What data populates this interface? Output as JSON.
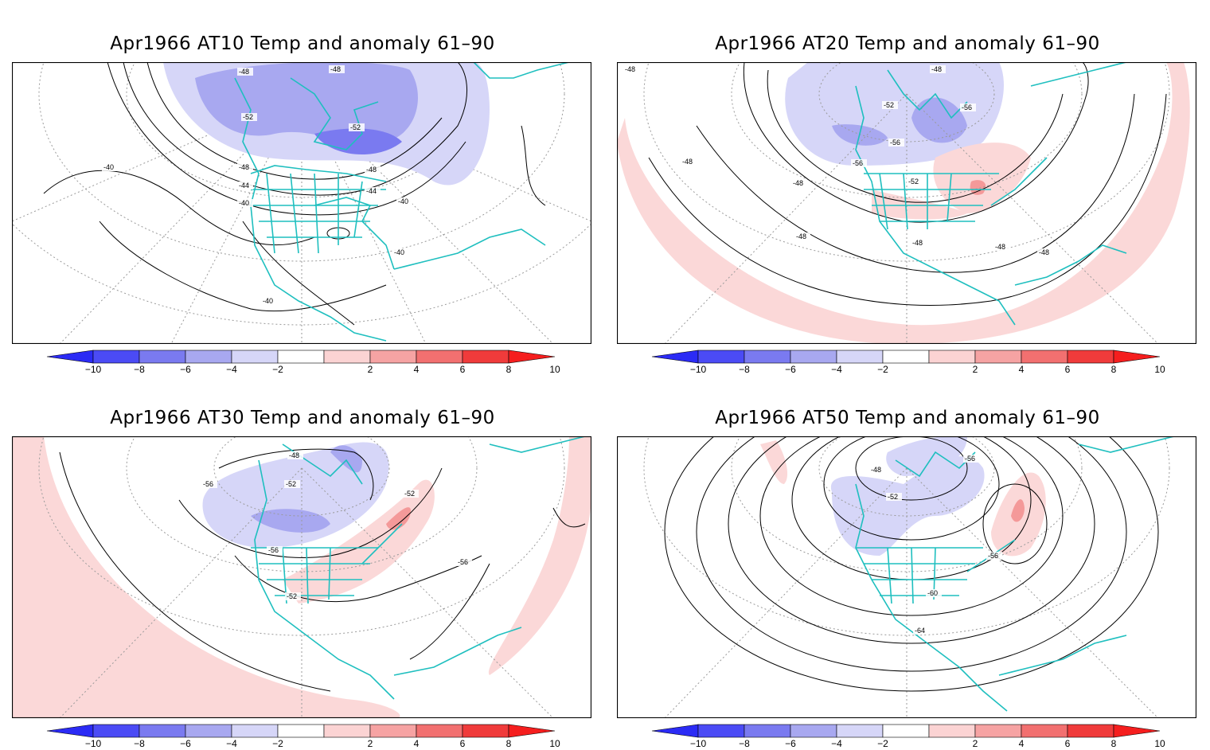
{
  "panels": [
    {
      "id": "at10",
      "title": "Apr1966 AT10 Temp and anomaly 61–90",
      "contour_labels": [
        "-48",
        "-48",
        "-52",
        "-52",
        "-48",
        "-48",
        "-44",
        "-44",
        "-40",
        "-40",
        "-40",
        "-40",
        "-40"
      ]
    },
    {
      "id": "at20",
      "title": "Apr1966 AT20 Temp and anomaly 61–90",
      "contour_labels": [
        "-48",
        "-48",
        "-52",
        "-56",
        "-56",
        "-56",
        "-52",
        "-48",
        "-48",
        "-48",
        "-48",
        "-48",
        "-48"
      ]
    },
    {
      "id": "at30",
      "title": "Apr1966 AT30 Temp and anomaly 61–90",
      "contour_labels": [
        "-48",
        "-56",
        "-52",
        "-52",
        "-56",
        "-56",
        "-52"
      ]
    },
    {
      "id": "at50",
      "title": "Apr1966 AT50 Temp and anomaly 61–90",
      "contour_labels": [
        "-56",
        "-48",
        "-52",
        "-56",
        "-60",
        "-64"
      ]
    }
  ],
  "colorbar": {
    "labels": [
      "−10",
      "−8",
      "−6",
      "−4",
      "−2",
      "2",
      "4",
      "6",
      "8",
      "10"
    ],
    "colors": [
      "#2b2bf5",
      "#4b4bf5",
      "#7a7af0",
      "#a8a8f0",
      "#d6d6f8",
      "#ffffff",
      "#fbd3d3",
      "#f6a3a3",
      "#f27070",
      "#f03b3b",
      "#f51e1e"
    ]
  },
  "style": {
    "coast_color": "#1fbfbf",
    "neg_anom_light": "#d6d6f8",
    "neg_anom_mid": "#a8a8f0",
    "pos_anom_light": "#fbd8d8",
    "pos_anom_mid": "#f49999"
  }
}
